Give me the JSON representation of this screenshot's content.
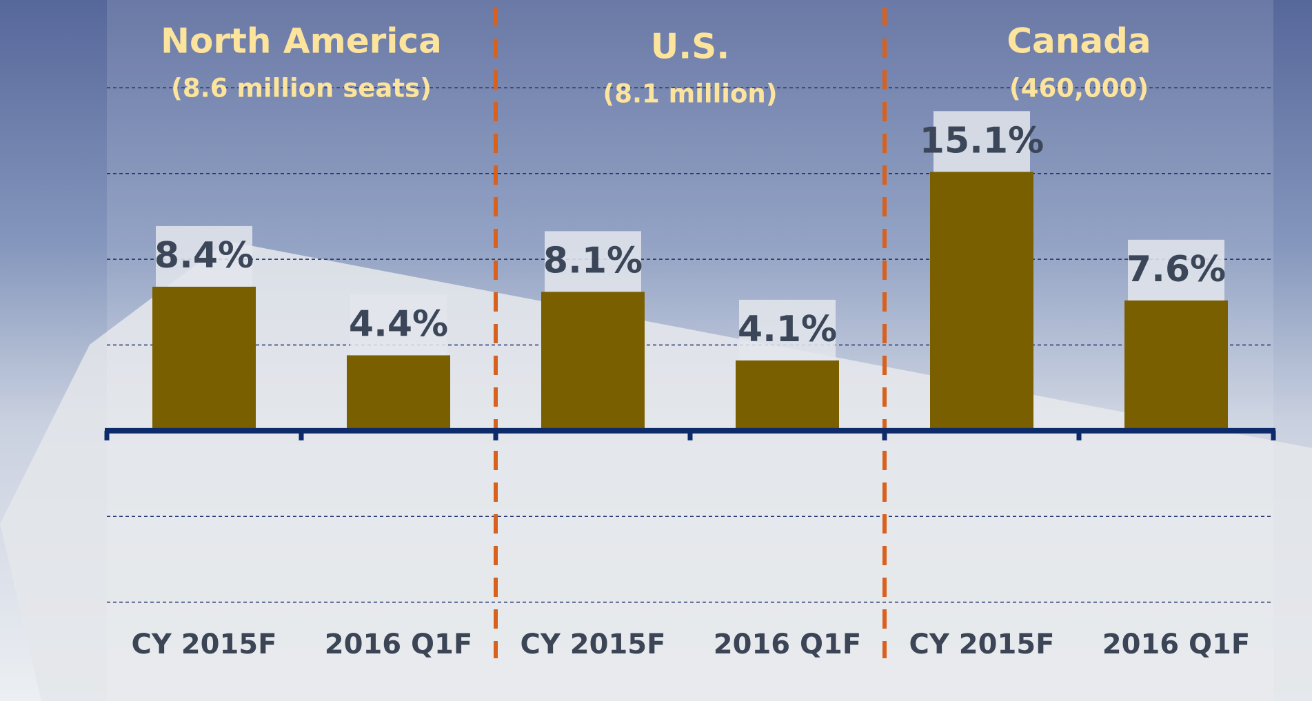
{
  "chart_data": {
    "type": "bar",
    "groups": [
      {
        "title": "North America",
        "subtitle": "(8.6 million seats)"
      },
      {
        "title": "U.S.",
        "subtitle": "(8.1 million)"
      },
      {
        "title": "Canada",
        "subtitle": "(460,000)"
      }
    ],
    "categories": [
      "CY 2015F",
      "2016 Q1F",
      "CY 2015F",
      "2016 Q1F",
      "CY 2015F",
      "2016 Q1F"
    ],
    "values": [
      8.4,
      4.4,
      8.1,
      4.1,
      15.1,
      7.6
    ],
    "value_labels": [
      "8.4%",
      "4.4%",
      "8.1%",
      "4.1%",
      "15.1%",
      "7.6%"
    ],
    "color": "#7a5f00",
    "ylim": [
      -15,
      25
    ],
    "yticks": [
      -10,
      -5,
      0,
      5,
      10,
      15,
      20
    ],
    "grid": true
  }
}
